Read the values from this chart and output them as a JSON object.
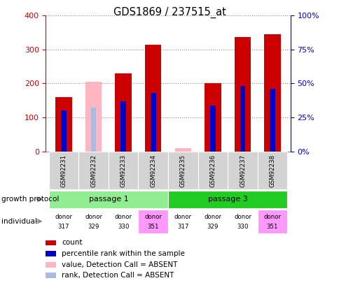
{
  "title": "GDS1869 / 237515_at",
  "samples": [
    "GSM92231",
    "GSM92232",
    "GSM92233",
    "GSM92234",
    "GSM92235",
    "GSM92236",
    "GSM92237",
    "GSM92238"
  ],
  "count_values": [
    160,
    0,
    230,
    315,
    0,
    200,
    337,
    345
  ],
  "percentile_values": [
    30,
    0,
    37,
    43,
    0,
    34,
    48,
    46
  ],
  "absent_value_values": [
    0,
    205,
    0,
    0,
    10,
    0,
    0,
    0
  ],
  "absent_rank_values": [
    0,
    32,
    0,
    0,
    0,
    0,
    0,
    0
  ],
  "is_absent": [
    false,
    true,
    false,
    false,
    true,
    false,
    false,
    false
  ],
  "passage_groups": [
    {
      "label": "passage 1",
      "start": 0,
      "end": 3,
      "color": "#90EE90"
    },
    {
      "label": "passage 3",
      "start": 4,
      "end": 7,
      "color": "#22CC22"
    }
  ],
  "donors": [
    "317",
    "329",
    "330",
    "351",
    "317",
    "329",
    "330",
    "351"
  ],
  "donor_colors": [
    "#ffffff",
    "#ffffff",
    "#ffffff",
    "#FF99FF",
    "#ffffff",
    "#ffffff",
    "#ffffff",
    "#FF99FF"
  ],
  "ylim_left": [
    0,
    400
  ],
  "ylim_right": [
    0,
    100
  ],
  "yticks_left": [
    0,
    100,
    200,
    300,
    400
  ],
  "yticks_right": [
    0,
    25,
    50,
    75,
    100
  ],
  "ytick_labels_right": [
    "0%",
    "25%",
    "50%",
    "75%",
    "100%"
  ],
  "bar_width": 0.55,
  "percentile_bar_width": 0.18,
  "count_color": "#CC0000",
  "percentile_color": "#0000CC",
  "absent_value_color": "#FFB6C1",
  "absent_rank_color": "#AABBDD",
  "grid_color": "#888888",
  "left_axis_color": "#CC0000",
  "right_axis_color": "#0000BB",
  "sample_label_bg": "#d3d3d3",
  "passage1_color": "#90EE90",
  "passage3_color": "#22CC22"
}
